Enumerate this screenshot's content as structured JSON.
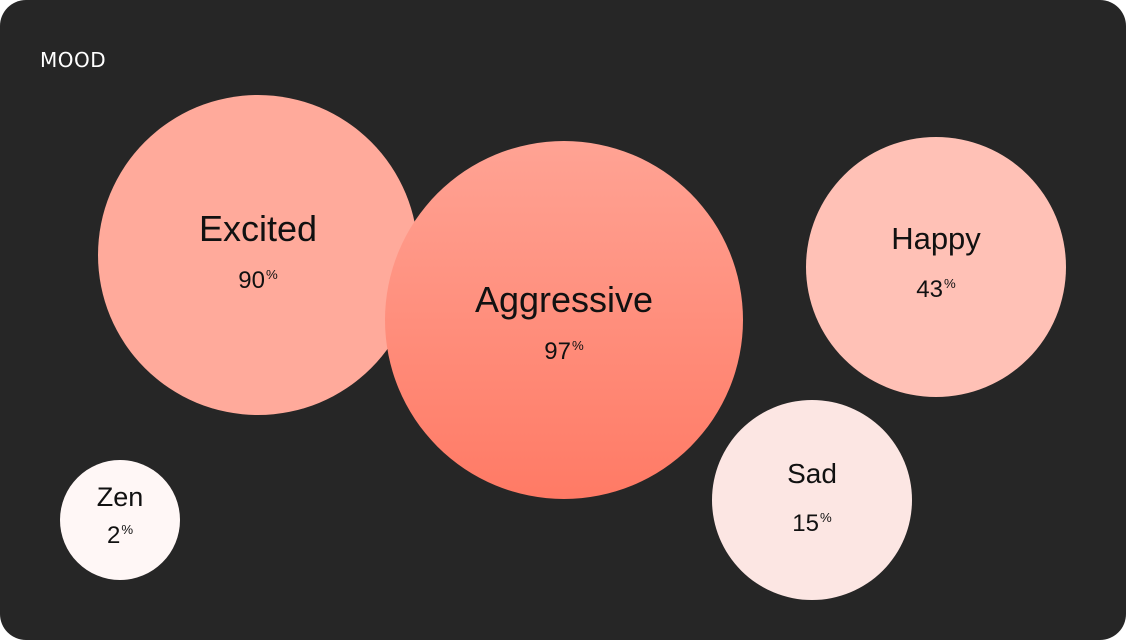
{
  "card": {
    "title": "MOOD",
    "background": "#262626"
  },
  "chart_data": {
    "type": "bubble",
    "title": "MOOD",
    "unit": "%",
    "points": [
      {
        "label": "Excited",
        "value": 90,
        "color": "#FFAA9B"
      },
      {
        "label": "Aggressive",
        "value": 97,
        "color_top": "#FFA394",
        "color_bottom": "#FF7A65"
      },
      {
        "label": "Happy",
        "value": 43,
        "color": "#FFC1B6"
      },
      {
        "label": "Sad",
        "value": 15,
        "color": "#FCE6E3"
      },
      {
        "label": "Zen",
        "value": 2,
        "color": "#FFF7F6"
      }
    ]
  }
}
